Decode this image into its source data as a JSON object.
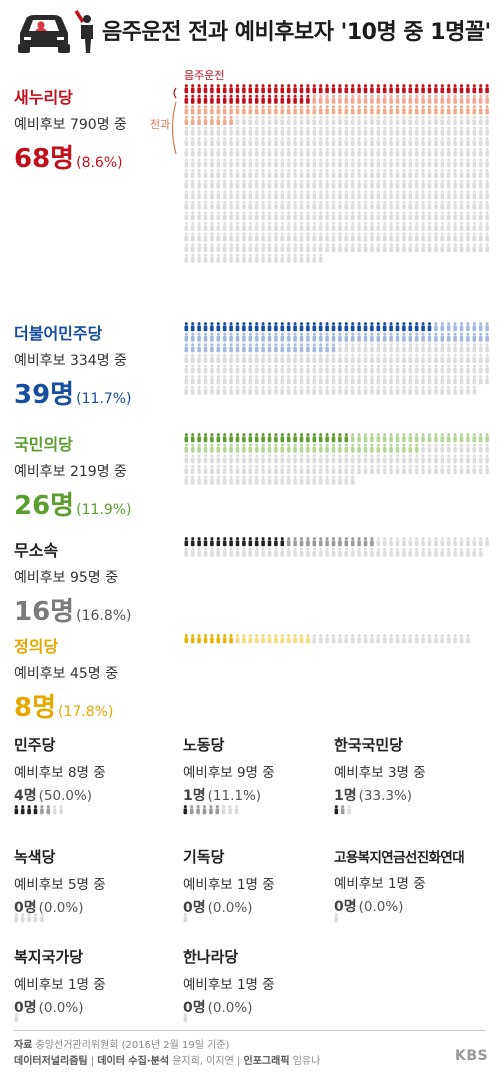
{
  "title": "음주운전 전과 예비후보자 '10명 중 1명꼴'",
  "legend": {
    "drunk": "음주운전",
    "record": "전과"
  },
  "chart_data": {
    "type": "pictogram",
    "unit": "명",
    "parties": [
      {
        "name": "새누리당",
        "candidates_label": "예비후보 790명 중",
        "drunk_label": "68명",
        "pct_label": "(8.6%)",
        "total": 790,
        "record": 152,
        "drunk": 68,
        "color": "#c0111b",
        "light": "#f0a98c",
        "gray": "#dcdcdc"
      },
      {
        "name": "더불어민주당",
        "candidates_label": "예비후보 334명 중",
        "drunk_label": "39명",
        "pct_label": "(11.7%)",
        "total": 334,
        "record": 120,
        "drunk": 39,
        "color": "#164d9c",
        "light": "#a4b9dd",
        "gray": "#dcdcdc"
      },
      {
        "name": "국민의당",
        "candidates_label": "예비후보 219명 중",
        "drunk_label": "26명",
        "pct_label": "(11.9%)",
        "total": 219,
        "record": 85,
        "drunk": 26,
        "color": "#5a9e2f",
        "light": "#b6d698",
        "gray": "#dcdcdc"
      },
      {
        "name": "무소속",
        "candidates_label": "예비후보 95명 중",
        "drunk_label": "16명",
        "pct_label": "(16.8%)",
        "total": 95,
        "record": 30,
        "drunk": 16,
        "color": "#222222",
        "light": "#9a9a9a",
        "gray": "#dcdcdc"
      },
      {
        "name": "정의당",
        "candidates_label": "예비후보 45명 중",
        "drunk_label": "8명",
        "pct_label": "(17.8%)",
        "total": 45,
        "record": 20,
        "drunk": 8,
        "color": "#e6b400",
        "light": "#f5dc78",
        "gray": "#dcdcdc"
      },
      {
        "name": "민주당",
        "candidates_label": "예비후보 8명 중",
        "drunk_label": "4명",
        "pct_label": "(50.0%)",
        "total": 8,
        "record": 6,
        "drunk": 4,
        "color": "#222222",
        "light": "#9a9a9a",
        "gray": "#dcdcdc"
      },
      {
        "name": "노동당",
        "candidates_label": "예비후보 9명 중",
        "drunk_label": "1명",
        "pct_label": "(11.1%)",
        "total": 9,
        "record": 6,
        "drunk": 1,
        "color": "#222222",
        "light": "#9a9a9a",
        "gray": "#dcdcdc"
      },
      {
        "name": "한국국민당",
        "candidates_label": "예비후보 3명 중",
        "drunk_label": "1명",
        "pct_label": "(33.3%)",
        "total": 3,
        "record": 2,
        "drunk": 1,
        "color": "#222222",
        "light": "#9a9a9a",
        "gray": "#dcdcdc"
      },
      {
        "name": "녹색당",
        "candidates_label": "예비후보 5명 중",
        "drunk_label": "0명",
        "pct_label": "(0.0%)",
        "total": 5,
        "record": 0,
        "drunk": 0,
        "color": "#222222",
        "light": "#9a9a9a",
        "gray": "#dcdcdc"
      },
      {
        "name": "기독당",
        "candidates_label": "예비후보 1명 중",
        "drunk_label": "0명",
        "pct_label": "(0.0%)",
        "total": 1,
        "record": 0,
        "drunk": 0,
        "color": "#222222",
        "light": "#9a9a9a",
        "gray": "#dcdcdc"
      },
      {
        "name": "고용복지연금선진화연대",
        "candidates_label": "예비후보 1명 중",
        "drunk_label": "0명",
        "pct_label": "(0.0%)",
        "total": 1,
        "record": 0,
        "drunk": 0,
        "color": "#222222",
        "light": "#9a9a9a",
        "gray": "#dcdcdc"
      },
      {
        "name": "복지국가당",
        "candidates_label": "예비후보 1명 중",
        "drunk_label": "0명",
        "pct_label": "(0.0%)",
        "total": 1,
        "record": 0,
        "drunk": 0,
        "color": "#222222",
        "light": "#9a9a9a",
        "gray": "#dcdcdc"
      },
      {
        "name": "한나라당",
        "candidates_label": "예비후보 1명 중",
        "drunk_label": "0명",
        "pct_label": "(0.0%)",
        "total": 1,
        "record": 0,
        "drunk": 0,
        "color": "#222222",
        "light": "#9a9a9a",
        "gray": "#dcdcdc"
      }
    ]
  },
  "footer": {
    "source_label": "자료",
    "source_text": "중앙선거관리위원회 (2016년 2월 19일 기준)",
    "team_label": "데이터저널리즘팀",
    "collect_label": "데이터 수집·분석",
    "collect_names": "윤지희, 이지연",
    "graphic_label": "인포그래픽",
    "graphic_names": "임유나",
    "logo": "KBS"
  }
}
